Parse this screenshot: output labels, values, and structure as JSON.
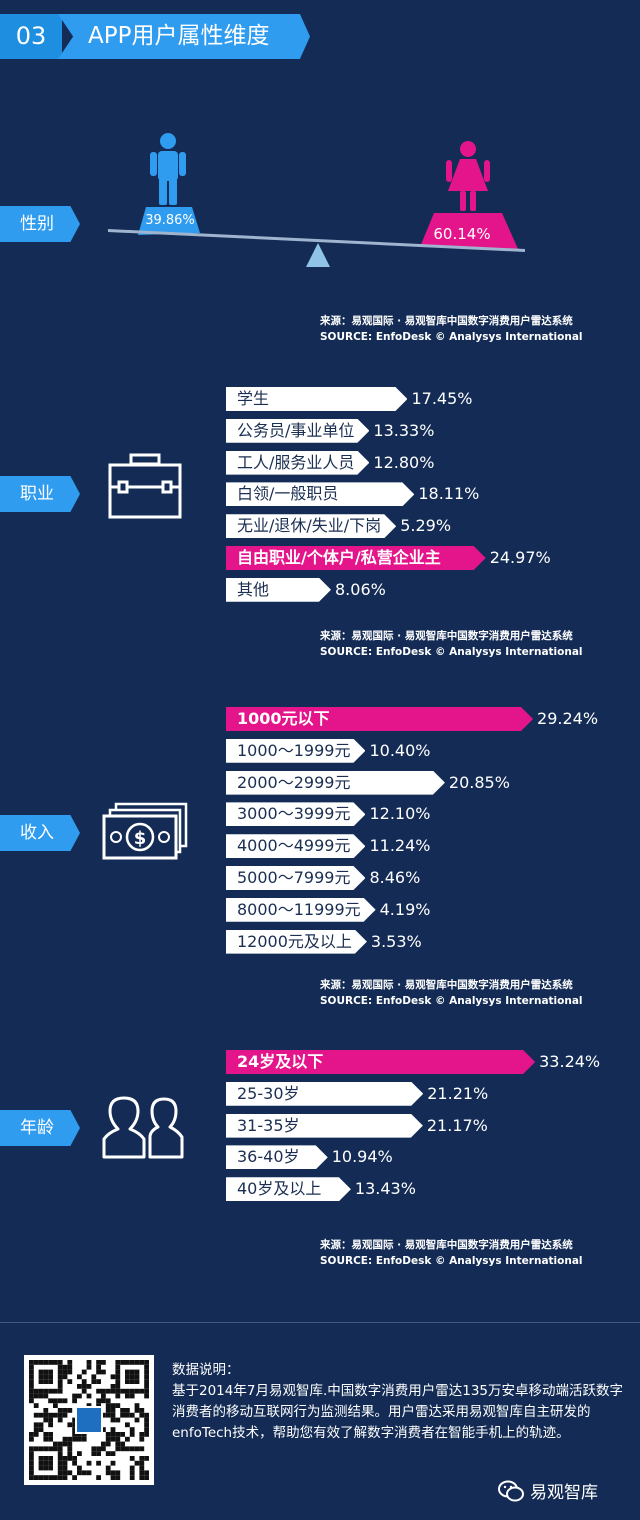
{
  "header": {
    "number": "03",
    "title": "APP用户属性维度"
  },
  "colors": {
    "background": "#142c55",
    "accent_blue": "#2f9cf0",
    "highlight": "#e4148b",
    "male": "#2f9cf0",
    "female": "#e4148b"
  },
  "source": {
    "line1": "来源：易观国际 · 易观智库中国数字消费用户雷达系统",
    "line2": "SOURCE: EnfoDesk © Analysys International"
  },
  "gender": {
    "label": "性别",
    "male_icon": "male-person-icon",
    "female_icon": "female-person-icon",
    "male_value": "39.86%",
    "female_value": "60.14%"
  },
  "occupation": {
    "label": "职业",
    "icon": "briefcase-icon"
  },
  "income": {
    "label": "收入",
    "icon": "money-icon"
  },
  "age": {
    "label": "年龄",
    "icon": "people-icon"
  },
  "chart_data": [
    {
      "type": "pie",
      "categories": [
        "男",
        "女"
      ],
      "values": [
        39.86,
        60.14
      ]
    },
    {
      "type": "bar",
      "categories": [
        "学生",
        "公务员/事业单位",
        "工人/服务业人员",
        "白领/一般职员",
        "无业/退休/失业/下岗",
        "自由职业/个体户/私营企业主",
        "其他"
      ],
      "values": [
        17.45,
        13.33,
        12.8,
        18.11,
        5.29,
        24.97,
        8.06
      ],
      "labels": [
        "17.45%",
        "13.33%",
        "12.80%",
        "18.11%",
        "5.29%",
        "24.97%",
        "8.06%"
      ],
      "highlight_index": 5
    },
    {
      "type": "bar",
      "categories": [
        "1000元以下",
        "1000～1999元",
        "2000～2999元",
        "3000～3999元",
        "4000～4999元",
        "5000～7999元",
        "8000～11999元",
        "12000元及以上"
      ],
      "values": [
        29.24,
        10.4,
        20.85,
        12.1,
        11.24,
        8.46,
        4.19,
        3.53
      ],
      "labels": [
        "29.24%",
        "10.40%",
        "20.85%",
        "12.10%",
        "11.24%",
        "8.46%",
        "4.19%",
        "3.53%"
      ],
      "highlight_index": 0
    },
    {
      "type": "bar",
      "categories": [
        "24岁及以下",
        "25-30岁",
        "31-35岁",
        "36-40岁",
        "40岁及以上"
      ],
      "values": [
        33.24,
        21.21,
        21.17,
        10.94,
        13.43
      ],
      "labels": [
        "33.24%",
        "21.21%",
        "21.17%",
        "10.94%",
        "13.43%"
      ],
      "highlight_index": 0
    }
  ],
  "footer": {
    "qr_icon": "qr-code-icon",
    "note_title": "数据说明：",
    "note_body": "基于2014年7月易观智库.中国数字消费用户雷达135万安卓移动端活跃数字消费者的移动互联网行为监测结果。用户雷达采用易观智库自主研发的enfoTech技术，帮助您有效了解数字消费者在智能手机上的轨迹。",
    "brand_icon": "wechat-icon",
    "brand": "易观智库"
  }
}
